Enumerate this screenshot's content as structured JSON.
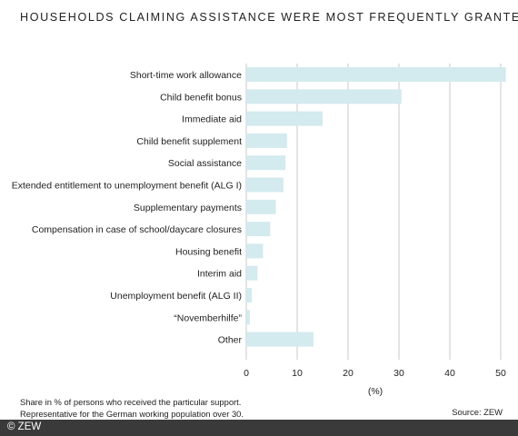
{
  "header": {
    "title": "HOUSEHOLDS CLAIMING ASSISTANCE WERE MOST FREQUENTLY GRANTED:"
  },
  "chart_data": {
    "type": "bar",
    "orientation": "horizontal",
    "title": "HOUSEHOLDS CLAIMING ASSISTANCE WERE MOST FREQUENTLY GRANTED:",
    "xlabel": "(%)",
    "ylabel": "",
    "xlim": [
      0,
      50
    ],
    "xticks": [
      0,
      10,
      20,
      30,
      40,
      50
    ],
    "grid": true,
    "categories": [
      "Short-time work allowance",
      "Child benefit bonus",
      "Immediate aid",
      "Child benefit supplement",
      "Social assistance",
      "Extended entitlement to unemployment benefit (ALG I)",
      "Supplementary payments",
      "Compensation in case of school/daycare closures",
      "Housing benefit",
      "Interim aid",
      "Unemployment benefit (ALG II)",
      "“Novemberhilfe”",
      "Other"
    ],
    "values": [
      51,
      30.5,
      15,
      8,
      7.7,
      7.3,
      5.8,
      4.7,
      3.3,
      2.2,
      1.1,
      0.7,
      13.2
    ],
    "bar_color": "#d3eaee"
  },
  "footnote": {
    "line1": "Share in % of persons who received the particular support.",
    "line2": "Representative for the German working population over 30.",
    "source": "Source: ZEW"
  },
  "footer": {
    "copyright": "© ZEW"
  }
}
